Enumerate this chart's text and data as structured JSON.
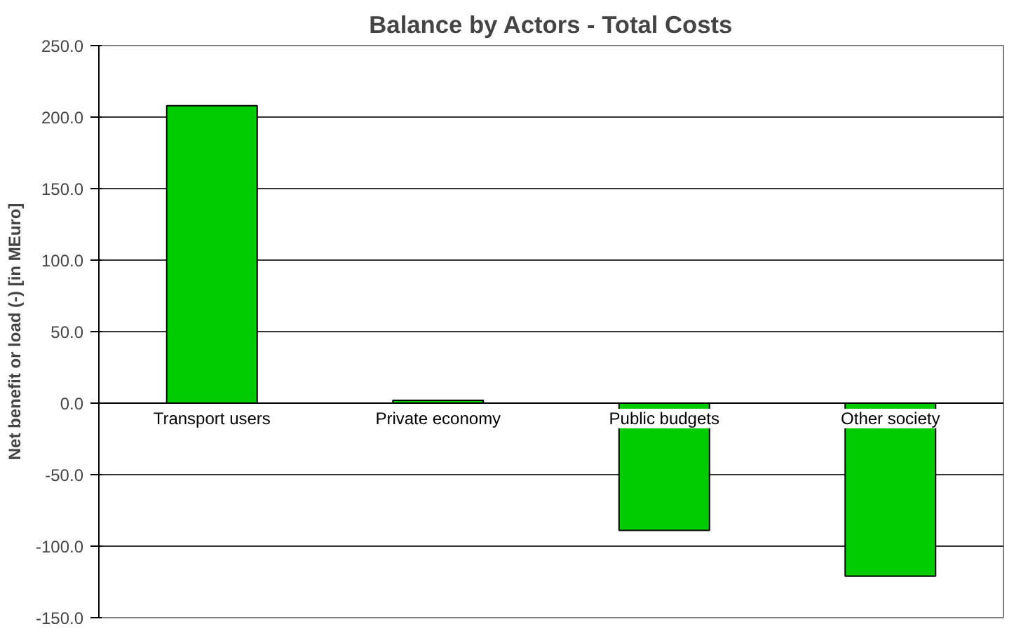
{
  "chart_data": {
    "type": "bar",
    "title": "Balance by Actors - Total Costs",
    "ylabel": "Net benefit or load (-) [in MEuro]",
    "categories": [
      "Transport users",
      "Private economy",
      "Public budgets",
      "Other society"
    ],
    "values": [
      208,
      2,
      -89,
      -121
    ],
    "color": "#00cc00",
    "ylim": [
      -150,
      250
    ],
    "yticks": [
      {
        "value": -150,
        "label": "-150.0"
      },
      {
        "value": -100,
        "label": "-100.0"
      },
      {
        "value": -50,
        "label": "-50.0"
      },
      {
        "value": 0,
        "label": "0.0"
      },
      {
        "value": 50,
        "label": "50.0"
      },
      {
        "value": 100,
        "label": "100.0"
      },
      {
        "value": 150,
        "label": "150.0"
      },
      {
        "value": 200,
        "label": "200.0"
      },
      {
        "value": 250,
        "label": "250.0"
      }
    ],
    "grid": "y"
  }
}
